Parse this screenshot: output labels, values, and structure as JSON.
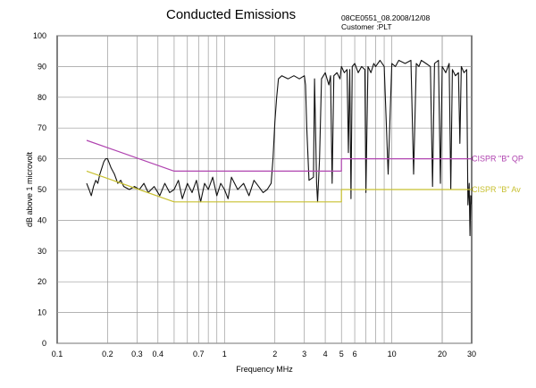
{
  "header": {
    "title": "Conducted Emissions",
    "reference": "08CE0551_08.2008/12/08",
    "customer": "Customer :PLT"
  },
  "chart_data": {
    "type": "line",
    "title": "Conducted Emissions",
    "xlabel": "Frequency MHz",
    "ylabel": "dB above 1 microvolt",
    "xscale": "log",
    "xlim": [
      0.1,
      30
    ],
    "ylim": [
      0,
      100
    ],
    "grid": true,
    "legend": "inline labels at right end of limit lines",
    "x_ticks": [
      0.1,
      0.2,
      0.3,
      0.4,
      0.7,
      1,
      2,
      3,
      4,
      5,
      6,
      10,
      20,
      30
    ],
    "x_tick_labels": [
      "0.1",
      "0.2",
      "0.3",
      "0.4",
      "0.7",
      "1",
      "2",
      "3",
      "4",
      "5",
      "6",
      "10",
      "20",
      "30"
    ],
    "y_ticks": [
      0,
      10,
      20,
      30,
      40,
      50,
      60,
      70,
      80,
      90,
      100
    ],
    "y_tick_labels": [
      "0",
      "10",
      "20",
      "30",
      "40",
      "50",
      "60",
      "70",
      "80",
      "90",
      "100"
    ],
    "series": [
      {
        "name": "",
        "color": "#111111",
        "x": [
          0.15,
          0.155,
          0.16,
          0.165,
          0.17,
          0.175,
          0.18,
          0.185,
          0.19,
          0.195,
          0.2,
          0.21,
          0.22,
          0.23,
          0.24,
          0.25,
          0.27,
          0.29,
          0.31,
          0.33,
          0.35,
          0.38,
          0.41,
          0.44,
          0.47,
          0.5,
          0.53,
          0.56,
          0.6,
          0.64,
          0.68,
          0.72,
          0.76,
          0.8,
          0.85,
          0.9,
          0.95,
          1.0,
          1.05,
          1.1,
          1.2,
          1.3,
          1.4,
          1.5,
          1.6,
          1.7,
          1.8,
          1.9,
          1.95,
          2.0,
          2.05,
          2.1,
          2.2,
          2.4,
          2.6,
          2.8,
          3.0,
          3.05,
          3.1,
          3.2,
          3.4,
          3.45,
          3.5,
          3.55,
          3.6,
          3.7,
          3.8,
          4.0,
          4.1,
          4.2,
          4.3,
          4.4,
          4.5,
          4.7,
          4.9,
          5.0,
          5.2,
          5.4,
          5.5,
          5.6,
          5.7,
          5.8,
          6.0,
          6.3,
          6.6,
          6.9,
          7.0,
          7.2,
          7.5,
          7.8,
          8.0,
          8.5,
          9.0,
          9.5,
          10.0,
          10.5,
          11.0,
          12.0,
          13.0,
          13.5,
          14.0,
          14.5,
          15.0,
          16.0,
          17.0,
          17.5,
          18.0,
          19.0,
          19.5,
          20.0,
          21.0,
          22.0,
          22.5,
          23.0,
          24.0,
          25.0,
          25.5,
          26.0,
          27.0,
          28.0,
          28.5,
          29.0,
          29.3,
          29.6,
          30.0
        ],
        "values": [
          52,
          50,
          48,
          51,
          53,
          52,
          55,
          57,
          59,
          60,
          60,
          57,
          55,
          52,
          53,
          51,
          50,
          51,
          50,
          52,
          49,
          51,
          48,
          52,
          49,
          50,
          53,
          47,
          52,
          49,
          53,
          46,
          52,
          50,
          54,
          48,
          52,
          50,
          47,
          54,
          50,
          52,
          48,
          53,
          51,
          49,
          50,
          52,
          60,
          72,
          80,
          86,
          87,
          86,
          87,
          86,
          87,
          84,
          70,
          53,
          54,
          86,
          70,
          52,
          46,
          60,
          86,
          88,
          86,
          84,
          87,
          52,
          87,
          88,
          86,
          90,
          88,
          89,
          62,
          89,
          47,
          90,
          91,
          88,
          90,
          89,
          49,
          90,
          88,
          91,
          90,
          92,
          90,
          55,
          91,
          90,
          92,
          91,
          92,
          55,
          91,
          90,
          92,
          91,
          90,
          51,
          91,
          92,
          52,
          90,
          88,
          91,
          50,
          89,
          87,
          88,
          65,
          90,
          88,
          89,
          45,
          52,
          35,
          48,
          45
        ]
      },
      {
        "name": "CISPR \"B\" QP",
        "color": "#b044b0",
        "x": [
          0.15,
          0.5,
          0.5,
          5.0,
          5.0,
          30.0
        ],
        "values": [
          66,
          56,
          56,
          56,
          60,
          60
        ]
      },
      {
        "name": "CISPR \"B\" Av",
        "color": "#c8c030",
        "x": [
          0.15,
          0.5,
          0.5,
          5.0,
          5.0,
          30.0
        ],
        "values": [
          56,
          46,
          46,
          46,
          50,
          50
        ]
      }
    ]
  }
}
